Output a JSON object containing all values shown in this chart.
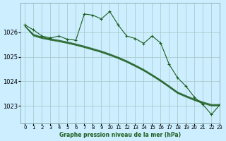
{
  "title": "Graphe pression niveau de la mer (hPa)",
  "bg_color": "#cceeff",
  "grid_color": "#aacccc",
  "line_color": "#1a5c1a",
  "xlim": [
    -0.5,
    23
  ],
  "ylim": [
    1022.3,
    1027.2
  ],
  "yticks": [
    1023,
    1024,
    1025,
    1026
  ],
  "xticks": [
    0,
    1,
    2,
    3,
    4,
    5,
    6,
    7,
    8,
    9,
    10,
    11,
    12,
    13,
    14,
    15,
    16,
    17,
    18,
    19,
    20,
    21,
    22,
    23
  ],
  "main_y": [
    1026.3,
    1026.1,
    1025.85,
    1025.77,
    1025.85,
    1025.72,
    1025.68,
    1026.75,
    1026.7,
    1026.55,
    1026.85,
    1026.3,
    1025.85,
    1025.75,
    1025.55,
    1025.85,
    1025.57,
    1024.7,
    1024.15,
    1023.8,
    1023.35,
    1023.05,
    1022.65,
    1023.05
  ],
  "smooth_lines": [
    [
      1026.25,
      1025.85,
      1025.75,
      1025.68,
      1025.62,
      1025.55,
      1025.47,
      1025.38,
      1025.28,
      1025.18,
      1025.06,
      1024.93,
      1024.78,
      1024.61,
      1024.43,
      1024.22,
      1024.0,
      1023.76,
      1023.51,
      1023.36,
      1023.22,
      1023.1,
      1023.0,
      1023.0
    ],
    [
      1026.25,
      1025.88,
      1025.77,
      1025.7,
      1025.64,
      1025.57,
      1025.49,
      1025.4,
      1025.3,
      1025.2,
      1025.08,
      1024.95,
      1024.8,
      1024.63,
      1024.45,
      1024.24,
      1024.02,
      1023.78,
      1023.53,
      1023.38,
      1023.24,
      1023.12,
      1023.02,
      1023.02
    ],
    [
      1026.25,
      1025.9,
      1025.79,
      1025.72,
      1025.66,
      1025.59,
      1025.51,
      1025.42,
      1025.32,
      1025.22,
      1025.1,
      1024.97,
      1024.82,
      1024.65,
      1024.47,
      1024.26,
      1024.04,
      1023.8,
      1023.55,
      1023.4,
      1023.26,
      1023.14,
      1023.04,
      1023.04
    ],
    [
      1026.25,
      1025.92,
      1025.81,
      1025.74,
      1025.68,
      1025.61,
      1025.53,
      1025.44,
      1025.34,
      1025.24,
      1025.12,
      1024.99,
      1024.84,
      1024.67,
      1024.49,
      1024.28,
      1024.06,
      1023.82,
      1023.57,
      1023.42,
      1023.28,
      1023.16,
      1023.06,
      1023.06
    ]
  ]
}
